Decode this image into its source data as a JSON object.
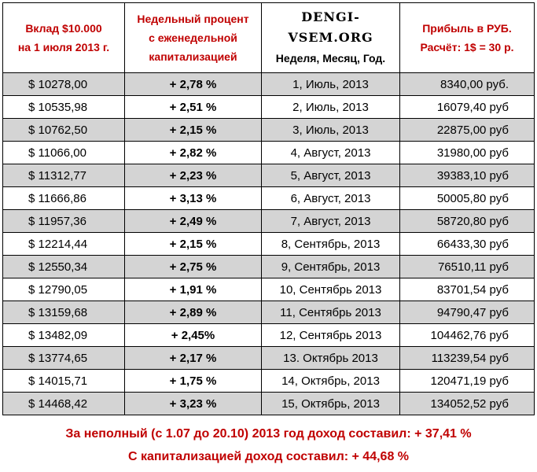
{
  "header": {
    "col1": [
      "Вклад $10.000",
      "на 1 июля 2013 г."
    ],
    "col2": [
      "Недельный процент",
      "с еженедельной",
      "капитализацией"
    ],
    "col3_site": "DENGI-VSEM.ORG",
    "col3_sub": "Неделя, Месяц, Год.",
    "col4": [
      "Прибыль в РУБ.",
      "Расчёт: 1$ = 30 р."
    ]
  },
  "rows": [
    {
      "deposit": "$ 10278,00",
      "percent": "+ 2,78 %",
      "period": "1, Июль, 2013",
      "profit": "8340,00 руб."
    },
    {
      "deposit": "$ 10535,98",
      "percent": "+ 2,51 %",
      "period": "2, Июль, 2013",
      "profit": "16079,40 руб"
    },
    {
      "deposit": "$ 10762,50",
      "percent": "+ 2,15 %",
      "period": "3, Июль, 2013",
      "profit": "22875,00 руб"
    },
    {
      "deposit": "$ 11066,00",
      "percent": "+ 2,82 %",
      "period": "4, Август, 2013",
      "profit": "31980,00 руб"
    },
    {
      "deposit": "$ 11312,77",
      "percent": "+ 2,23 %",
      "period": "5, Август, 2013",
      "profit": "39383,10 руб"
    },
    {
      "deposit": "$ 11666,86",
      "percent": "+ 3,13 %",
      "period": "6, Август, 2013",
      "profit": "50005,80 руб"
    },
    {
      "deposit": "$ 11957,36",
      "percent": "+ 2,49 %",
      "period": "7, Август, 2013",
      "profit": "58720,80 руб"
    },
    {
      "deposit": "$ 12214,44",
      "percent": "+ 2,15 %",
      "period": "8, Сентябрь, 2013",
      "profit": "66433,30 руб"
    },
    {
      "deposit": "$ 12550,34",
      "percent": "+ 2,75 %",
      "period": "9, Сентябрь, 2013",
      "profit": "76510,11 руб"
    },
    {
      "deposit": "$ 12790,05",
      "percent": "+ 1,91 %",
      "period": "10, Сентябрь 2013",
      "profit": "83701,54 руб"
    },
    {
      "deposit": "$ 13159,68",
      "percent": "+ 2,89 %",
      "period": "11, Сентябрь 2013",
      "profit": "94790,47 руб"
    },
    {
      "deposit": "$ 13482,09",
      "percent": "+ 2,45%",
      "period": "12, Сентябрь 2013",
      "profit": "104462,76 руб"
    },
    {
      "deposit": "$ 13774,65",
      "percent": "+ 2,17 %",
      "period": "13. Октябрь 2013",
      "profit": "113239,54 руб"
    },
    {
      "deposit": "$ 14015,71",
      "percent": "+ 1,75 %",
      "period": "14, Октябрь, 2013",
      "profit": "120471,19 руб"
    },
    {
      "deposit": "$ 14468,42",
      "percent": "+ 3,23 %",
      "period": "15, Октябрь, 2013",
      "profit": "134052,52 руб"
    }
  ],
  "footer": {
    "line1": "За неполный (с 1.07 до 20.10) 2013 год доход составил: + 37,41 %",
    "line2": "С капитализацией доход составил: + 44,68 %"
  },
  "colors": {
    "accent_red": "#c00000",
    "row_shade": "#d4d4d4"
  }
}
